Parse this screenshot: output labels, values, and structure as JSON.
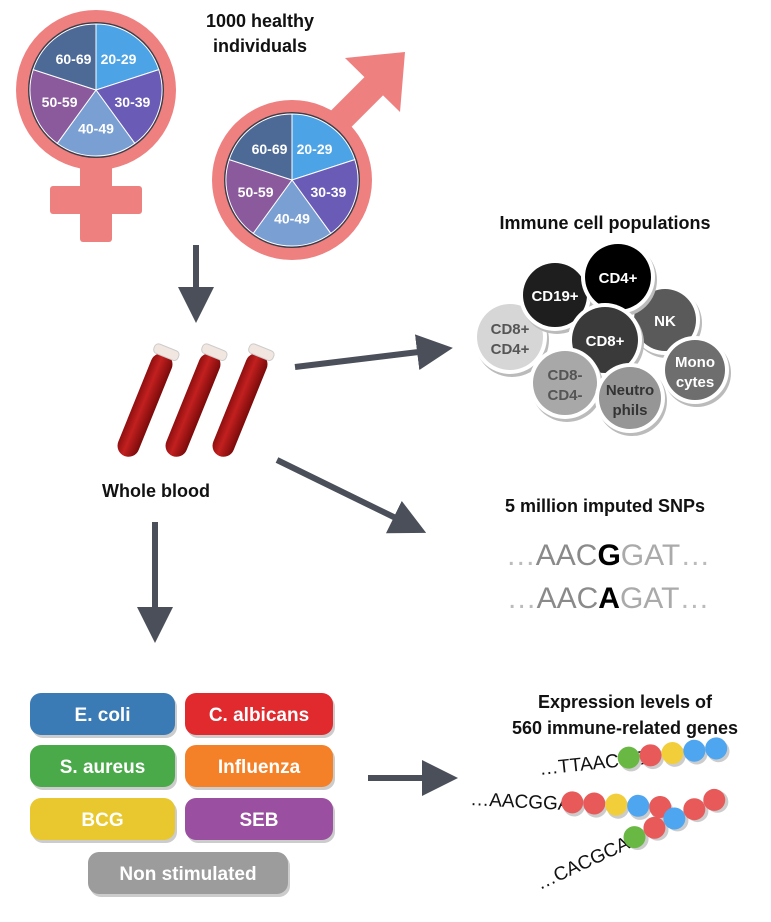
{
  "title": [
    "1000 healthy",
    "individuals"
  ],
  "age_groups": [
    "20-29",
    "30-39",
    "40-49",
    "50-59",
    "60-69"
  ],
  "age_colors": [
    "#4ca3e6",
    "#6a5bb6",
    "#7a9fd3",
    "#8a5a9c",
    "#4d6a96"
  ],
  "symbol_color": "#ee8080",
  "whole_blood": "Whole blood",
  "immune": {
    "title": "Immune cell populations",
    "cells": [
      {
        "l1": "CD8+",
        "l2": "CD4+",
        "fill": "#d6d6d6",
        "text": "#555"
      },
      {
        "l1": "CD19+",
        "l2": "",
        "fill": "#1e1e1e",
        "text": "#fff"
      },
      {
        "l1": "NK",
        "l2": "",
        "fill": "#5a5a5a",
        "text": "#fff"
      },
      {
        "l1": "CD4+",
        "l2": "",
        "fill": "#000000",
        "text": "#fff"
      },
      {
        "l1": "CD8+",
        "l2": "",
        "fill": "#3a3a3a",
        "text": "#fff"
      },
      {
        "l1": "CD8-",
        "l2": "CD4-",
        "fill": "#a8a8a8",
        "text": "#555"
      },
      {
        "l1": "Mono",
        "l2": "cytes",
        "fill": "#6e6e6e",
        "text": "#fff"
      },
      {
        "l1": "Neutro",
        "l2": "phils",
        "fill": "#969696",
        "text": "#333"
      }
    ]
  },
  "snps": {
    "title": "5 million imputed SNPs",
    "rows": [
      {
        "pre": "AAC",
        "alt": "G",
        "post": "GAT"
      },
      {
        "pre": "AAC",
        "alt": "A",
        "post": "GAT"
      }
    ]
  },
  "stimuli": [
    {
      "label": "E. coli",
      "color": "#3a7ab5"
    },
    {
      "label": "C. albicans",
      "color": "#e02a2e"
    },
    {
      "label": "S. aureus",
      "color": "#4aaa4a"
    },
    {
      "label": "Influenza",
      "color": "#f48128"
    },
    {
      "label": "BCG",
      "color": "#e8c82e"
    },
    {
      "label": "SEB",
      "color": "#9a4fa0"
    },
    {
      "label": "Non stimulated",
      "color": "#9c9c9c"
    }
  ],
  "expression": {
    "title": [
      "Expression levels of",
      "560 immune-related genes"
    ],
    "rows": [
      {
        "seq": "…TTAACGG",
        "dots": [
          "#6ab844",
          "#e85a5a",
          "#f2cf3a",
          "#4ea6f0",
          "#4ea6f0"
        ]
      },
      {
        "seq": "…AACGGAT",
        "dots": [
          "#e85a5a",
          "#e85a5a",
          "#f2cf3a",
          "#4ea6f0",
          "#e85a5a"
        ]
      },
      {
        "seq": "…CACGCAA",
        "dots": [
          "#6ab844",
          "#e85a5a",
          "#4ea6f0",
          "#e85a5a",
          "#e85a5a"
        ]
      }
    ]
  }
}
